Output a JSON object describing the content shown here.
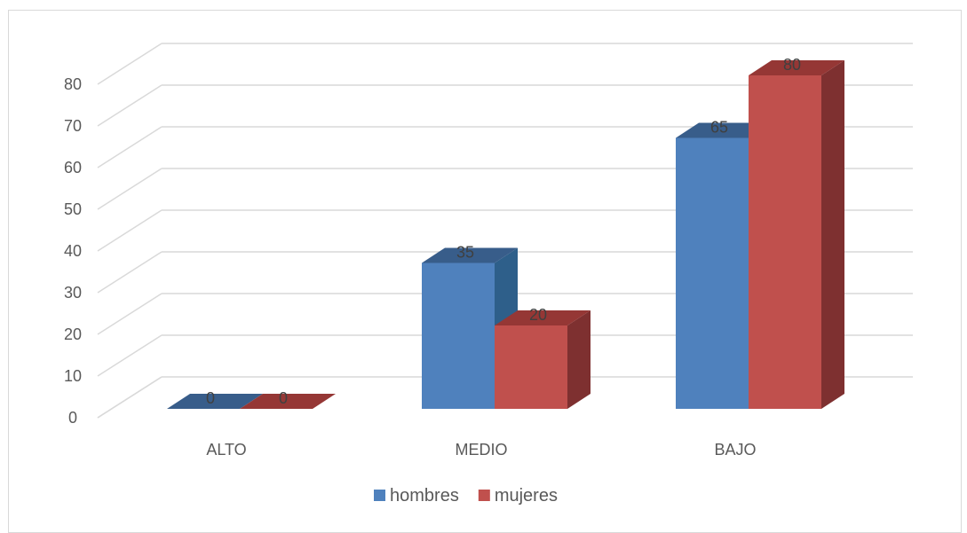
{
  "chart_data": {
    "type": "bar",
    "style": "3d-clustered-column",
    "categories": [
      "ALTO",
      "MEDIO",
      "BAJO"
    ],
    "series": [
      {
        "name": "hombres",
        "values": [
          0,
          35,
          65
        ],
        "color": "#4F81BD",
        "side_color": "#2E5F8A",
        "top_color": "#385D8A"
      },
      {
        "name": "mujeres",
        "values": [
          0,
          20,
          80
        ],
        "color": "#C0504D",
        "side_color": "#7E3030",
        "top_color": "#953735"
      }
    ],
    "ylim": [
      0,
      80
    ],
    "yticks": [
      0,
      10,
      20,
      30,
      40,
      50,
      60,
      70,
      80
    ],
    "grid": true,
    "grid_color": "#d9d9d9",
    "legend_position": "bottom",
    "data_labels": true
  }
}
